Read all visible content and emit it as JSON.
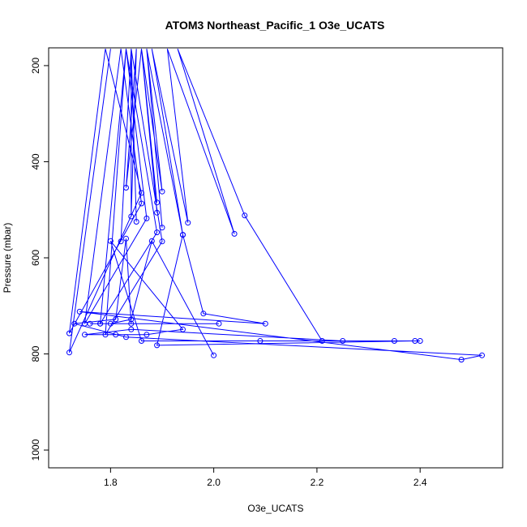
{
  "chart_data": {
    "type": "line",
    "title": "ATOM3 Northeast_Pacific_1 O3e_UCATS",
    "xlabel": "O3e_UCATS",
    "ylabel": "Pressure (mbar)",
    "xlim": [
      1.68,
      2.56
    ],
    "ylim": [
      1037,
      163
    ],
    "y_reversed": true,
    "x_ticks": [
      1.8,
      2.0,
      2.2,
      2.4
    ],
    "x_tick_labels": [
      "1.8",
      "2.0",
      "2.2",
      "2.4"
    ],
    "y_ticks": [
      200,
      400,
      600,
      800,
      1000
    ],
    "y_tick_labels": [
      "200",
      "400",
      "600",
      "800",
      "1000"
    ],
    "grid": false,
    "series": [
      {
        "color": "#0000ff",
        "marker": "open-circle",
        "points": [
          [
            1.8,
            165
          ],
          [
            1.72,
            797
          ],
          [
            1.86,
            465
          ],
          [
            1.79,
            165
          ],
          [
            1.72,
            757
          ],
          [
            1.86,
            487
          ],
          [
            1.82,
            165
          ],
          [
            1.75,
            737
          ],
          [
            1.87,
            518
          ],
          [
            1.83,
            165
          ],
          [
            1.78,
            737
          ],
          [
            1.89,
            547
          ],
          [
            1.83,
            165
          ],
          [
            1.79,
            760
          ],
          [
            1.9,
            566
          ],
          [
            1.84,
            165
          ],
          [
            1.82,
            566
          ],
          [
            1.84,
            165
          ],
          [
            1.85,
            525
          ],
          [
            1.84,
            165
          ],
          [
            1.84,
            514
          ],
          [
            1.85,
            165
          ],
          [
            1.83,
            454
          ],
          [
            1.86,
            165
          ],
          [
            1.89,
            485
          ],
          [
            1.86,
            165
          ],
          [
            1.89,
            506
          ],
          [
            1.86,
            165
          ],
          [
            1.9,
            462
          ],
          [
            1.87,
            165
          ],
          [
            1.9,
            537
          ],
          [
            1.87,
            165
          ],
          [
            1.94,
            552
          ],
          [
            1.88,
            165
          ],
          [
            1.95,
            527
          ],
          [
            1.91,
            165
          ],
          [
            2.04,
            550
          ],
          [
            1.93,
            165
          ],
          [
            2.06,
            512
          ],
          [
            2.21,
            773
          ],
          [
            2.35,
            773
          ],
          [
            2.4,
            773
          ],
          [
            2.25,
            773
          ],
          [
            1.84,
            749
          ],
          [
            1.75,
            760
          ],
          [
            1.81,
            760
          ],
          [
            1.87,
            760
          ],
          [
            1.94,
            749
          ],
          [
            1.8,
            565
          ],
          [
            1.86,
            773
          ],
          [
            2.09,
            773
          ],
          [
            2.39,
            773
          ],
          [
            1.89,
            782
          ],
          [
            1.94,
            552
          ],
          [
            1.98,
            716
          ],
          [
            2.1,
            737
          ],
          [
            1.74,
            712
          ],
          [
            2.48,
            812
          ],
          [
            2.52,
            803
          ],
          [
            1.83,
            765
          ],
          [
            1.73,
            737
          ],
          [
            1.81,
            728
          ],
          [
            1.83,
            560
          ],
          [
            1.84,
            737
          ],
          [
            2.01,
            737
          ],
          [
            1.76,
            737
          ],
          [
            1.78,
            737
          ],
          [
            1.8,
            737
          ],
          [
            1.84,
            728
          ],
          [
            1.88,
            565
          ],
          [
            2.0,
            803
          ]
        ]
      }
    ]
  }
}
